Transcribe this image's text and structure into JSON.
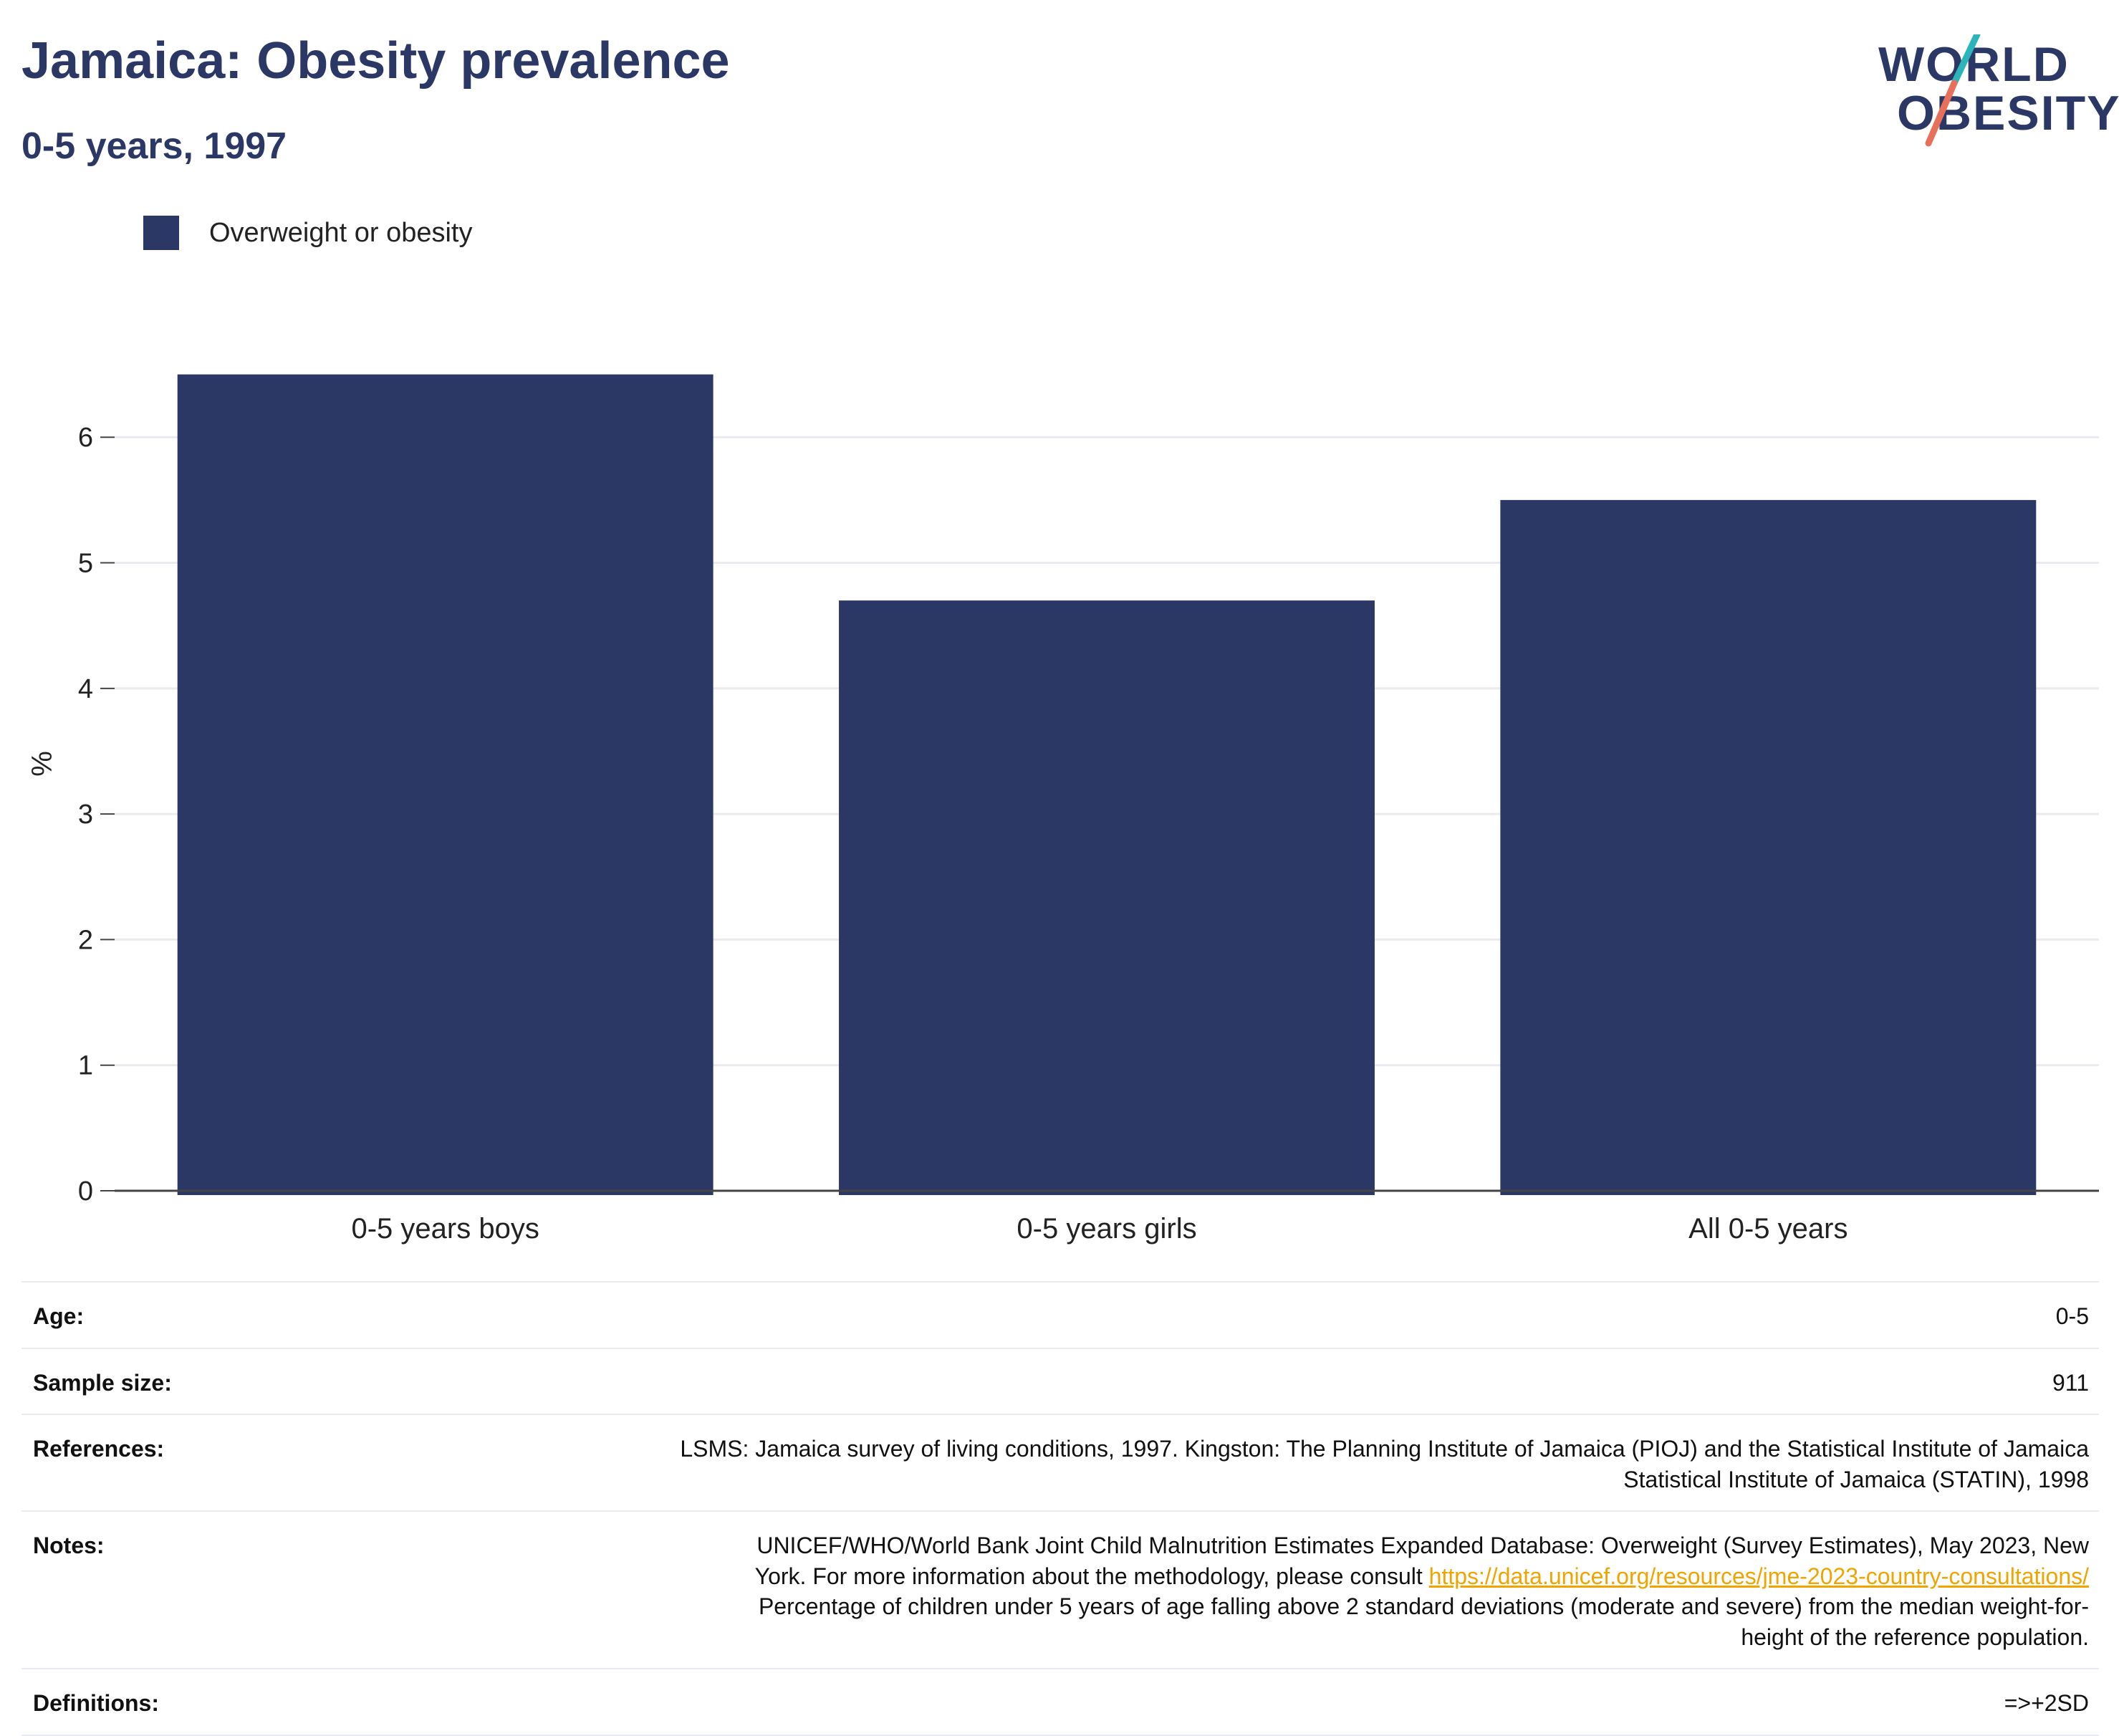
{
  "header": {
    "title": "Jamaica: Obesity prevalence",
    "subtitle": "0-5 years, 1997"
  },
  "logo": {
    "line1": "WORLD",
    "line2": "OBESITY",
    "colors": {
      "text": "#2b3866",
      "slash_top": "#2bb5b8",
      "slash_bottom": "#e8705a"
    }
  },
  "chart_data": {
    "type": "bar",
    "title": "Jamaica: Obesity prevalence",
    "subtitle": "0-5 years, 1997",
    "categories": [
      "0-5 years boys",
      "0-5 years girls",
      "All 0-5 years"
    ],
    "series": [
      {
        "name": "Overweight or obesity",
        "values": [
          6.5,
          4.7,
          5.5
        ],
        "color": "#2b3764"
      }
    ],
    "ylabel": "%",
    "xlabel": "",
    "ylim": [
      0,
      6.8
    ],
    "yticks": [
      0,
      1,
      2,
      3,
      4,
      5,
      6
    ],
    "grid": true,
    "legend_position": "top-left"
  },
  "meta": {
    "rows": [
      {
        "key": "Age:",
        "value_lines": [
          "0-5"
        ]
      },
      {
        "key": "Sample size:",
        "value_lines": [
          "911"
        ]
      },
      {
        "key": "References:",
        "value_lines": [
          "LSMS: Jamaica survey of living conditions, 1997. Kingston: The Planning Institute of Jamaica (PIOJ) and the Statistical Institute of Jamaica",
          "Statistical Institute of Jamaica (STATIN), 1998"
        ]
      },
      {
        "key": "Notes:",
        "value_lines": [
          "UNICEF/WHO/World Bank Joint Child Malnutrition Estimates Expanded Database: Overweight (Survey Estimates), May 2023, New",
          "Percentage of children under 5 years of age falling above 2 standard deviations (moderate and severe) from the median weight-for-",
          "height of the reference population."
        ],
        "link_prefix": "York. For more information about the methodology, please consult ",
        "link_text": "https://data.unicef.org/resources/jme-2023-country-consultations/"
      },
      {
        "key": "Definitions:",
        "value_lines": [
          "=>+2SD"
        ]
      }
    ]
  }
}
